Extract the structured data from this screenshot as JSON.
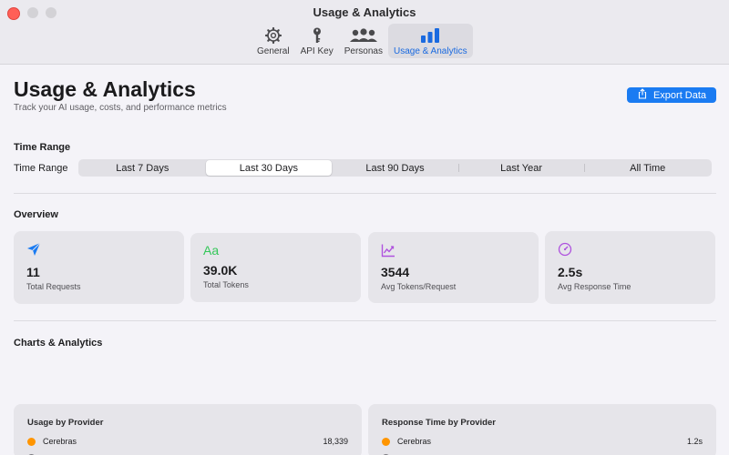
{
  "window": {
    "title": "Usage & Analytics"
  },
  "toolbar": {
    "items": [
      {
        "label": "General",
        "icon": "gear-icon"
      },
      {
        "label": "API Key",
        "icon": "key-icon"
      },
      {
        "label": "Personas",
        "icon": "people-icon"
      },
      {
        "label": "Usage & Analytics",
        "icon": "bar-chart-icon",
        "active": true
      }
    ]
  },
  "header": {
    "title": "Usage & Analytics",
    "subtitle": "Track your AI usage, costs, and performance metrics",
    "export_label": "Export Data"
  },
  "time_range": {
    "section_title": "Time Range",
    "label": "Time Range",
    "options": [
      "Last 7 Days",
      "Last 30 Days",
      "Last 90 Days",
      "Last Year",
      "All Time"
    ],
    "selected": "Last 30 Days"
  },
  "overview": {
    "section_title": "Overview",
    "cards": [
      {
        "value": "11",
        "label": "Total Requests",
        "icon": "paper-plane-icon",
        "color": "#1a7bf2"
      },
      {
        "value": "39.0K",
        "label": "Total Tokens",
        "icon": "text-aa-icon",
        "color": "#34c759"
      },
      {
        "value": "3544",
        "label": "Avg Tokens/Request",
        "icon": "trend-chart-icon",
        "color": "#af52de"
      },
      {
        "value": "2.5s",
        "label": "Avg Response Time",
        "icon": "gauge-icon",
        "color": "#af52de"
      }
    ]
  },
  "charts": {
    "section_title": "Charts & Analytics",
    "usage_by_provider": {
      "title": "Usage by Provider",
      "rows": [
        {
          "name": "Cerebras",
          "value": "18,339",
          "color": "#ff9500"
        }
      ]
    },
    "response_time_by_provider": {
      "title": "Response Time by Provider",
      "rows": [
        {
          "name": "Cerebras",
          "value": "1.2s",
          "color": "#ff9500"
        }
      ]
    }
  },
  "colors": {
    "accent": "#1a7bf2",
    "close": "#ff5f57",
    "provider_cerebras": "#ff9500"
  }
}
